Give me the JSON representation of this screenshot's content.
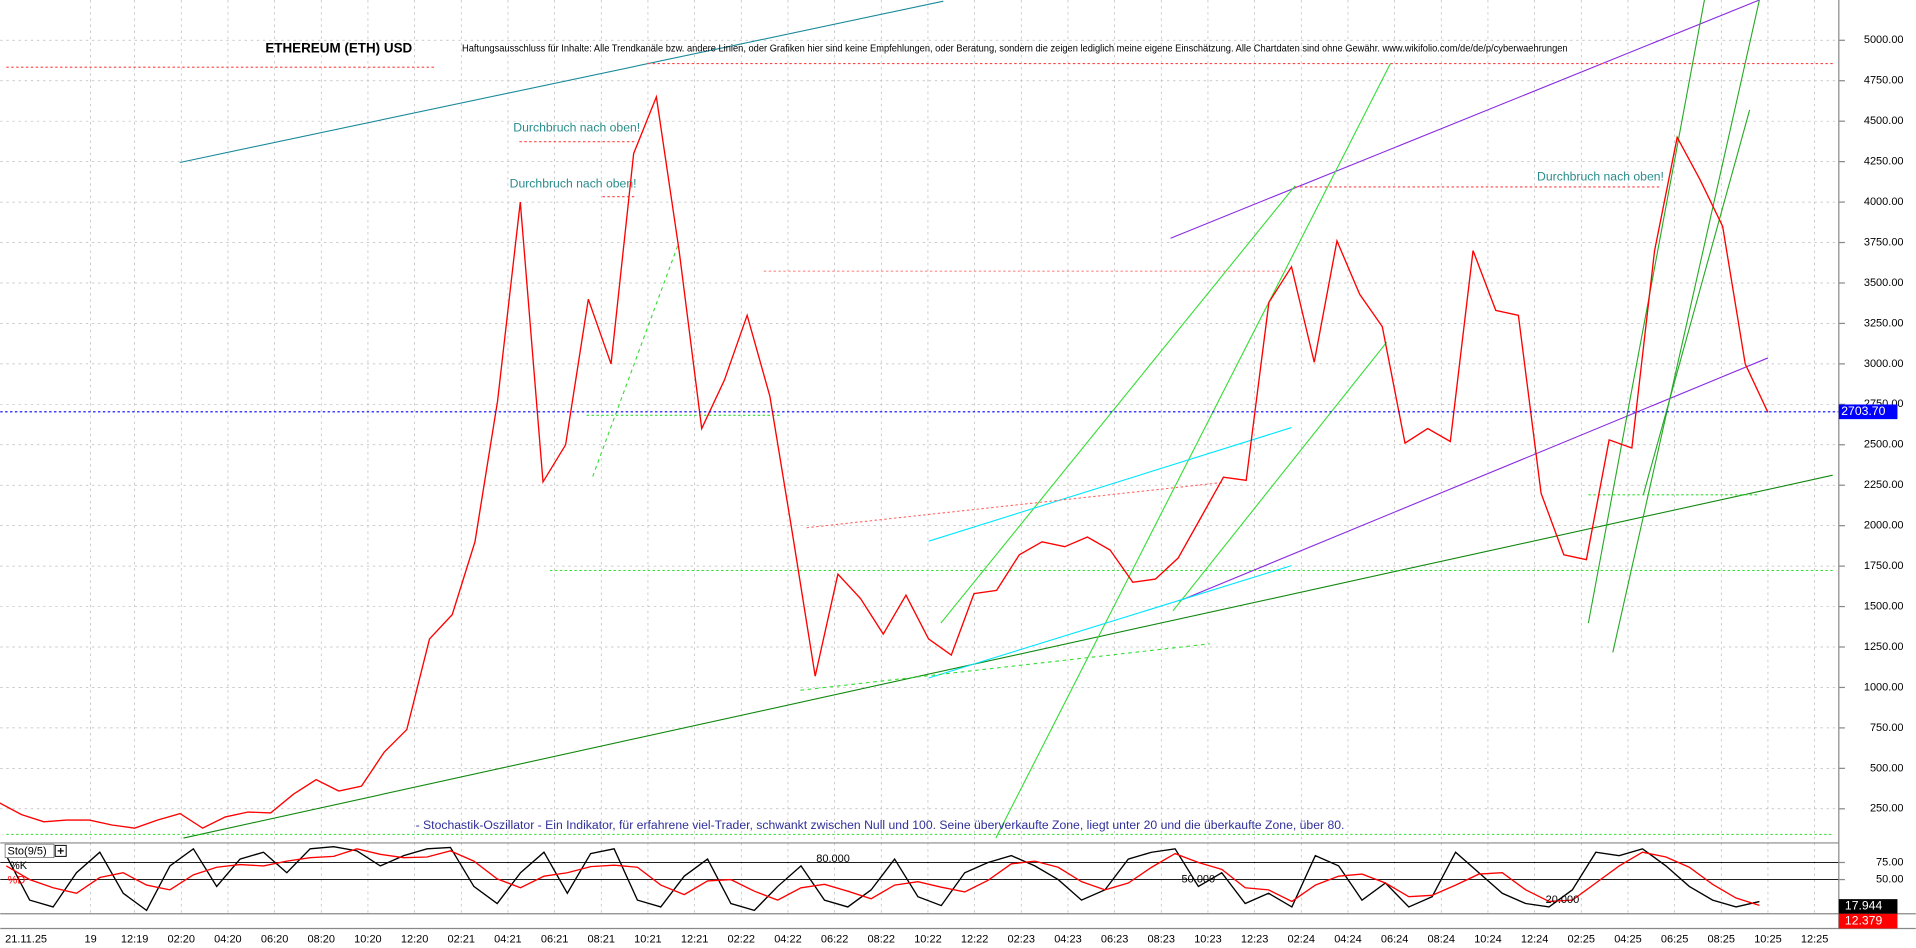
{
  "chart_data": [
    {
      "type": "line",
      "title": "ETHEREUM (ETH) USD",
      "disclaimer": "Haftungsausschluss für Inhalte: Alle Trendkanäle bzw. andere Linien, oder Grafiken hier sind keine Empfehlungen, oder Beratung, sondern die zeigen lediglich meine eigene Einschätzung. Alle Chartdaten sind ohne Gewähr.  www.wikifolio.com/de/de/p/cyberwaehrungen",
      "annotations": [
        "Durchbruch nach oben!",
        "Durchbruch nach oben!",
        "Durchbruch nach oben!",
        "- Stochastik-Oszillator - Ein Indikator, für erfahrene viel-Trader, schwankt zwischen Null und 100. Seine überverkaufte Zone, liegt unter 20 und die überkaufte Zone, über 80."
      ],
      "x_labels": [
        "21.11.25",
        "19",
        "12:19",
        "02:20",
        "04:20",
        "06:20",
        "08:20",
        "10:20",
        "12:20",
        "02:21",
        "04:21",
        "06:21",
        "08:21",
        "10:21",
        "12:21",
        "02:22",
        "04:22",
        "06:22",
        "08:22",
        "10:22",
        "12:22",
        "02:23",
        "04:23",
        "06:23",
        "08:23",
        "10:23",
        "12:23",
        "02:24",
        "04:24",
        "06:24",
        "08:24",
        "10:24",
        "12:24",
        "02:25",
        "04:25",
        "06:25",
        "08:25",
        "10:25",
        "12:25"
      ],
      "values": [
        290,
        215,
        170,
        180,
        180,
        150,
        130,
        180,
        220,
        130,
        200,
        230,
        225,
        340,
        430,
        360,
        390,
        600,
        740,
        1300,
        1450,
        1900,
        2770,
        4000,
        2270,
        2500,
        3400,
        3000,
        4300,
        4650,
        3700,
        2600,
        2900,
        3300,
        2800,
        1950,
        1070,
        1700,
        1550,
        1330,
        1570,
        1300,
        1200,
        1580,
        1600,
        1820,
        1900,
        1870,
        1930,
        1850,
        1650,
        1670,
        1800,
        2050,
        2300,
        2280,
        3380,
        3600,
        3010,
        3760,
        3430,
        3230,
        2510,
        2600,
        2520,
        3700,
        3330,
        3300,
        2200,
        1820,
        1790,
        2530,
        2480,
        3700,
        4400,
        4140,
        3850,
        3000,
        2700
      ],
      "color": "#ff0000",
      "last_price": {
        "value": 2703.7,
        "label": "2703.70"
      },
      "last_price_color": "#0000ff",
      "ylim": [
        39,
        5249
      ],
      "yticks": [
        {
          "value": 250,
          "label": "250.00"
        },
        {
          "value": 500,
          "label": "500.00"
        },
        {
          "value": 750,
          "label": "750.00"
        },
        {
          "value": 1000,
          "label": "1000.00"
        },
        {
          "value": 1250,
          "label": "1250.00"
        },
        {
          "value": 1500,
          "label": "1500.00"
        },
        {
          "value": 1750,
          "label": "1750.00"
        },
        {
          "value": 2000,
          "label": "2000.00"
        },
        {
          "value": 2250,
          "label": "2250.00"
        },
        {
          "value": 2500,
          "label": "2500.00"
        },
        {
          "value": 2750,
          "label": "2750.00"
        },
        {
          "value": 3000,
          "label": "3000.00"
        },
        {
          "value": 3250,
          "label": "3250.00"
        },
        {
          "value": 3500,
          "label": "3500.00"
        },
        {
          "value": 3750,
          "label": "3750.00"
        },
        {
          "value": 4000,
          "label": "4000.00"
        },
        {
          "value": 4250,
          "label": "4250.00"
        },
        {
          "value": 4500,
          "label": "4500.00"
        },
        {
          "value": 4750,
          "label": "4750.00"
        },
        {
          "value": 5000,
          "label": "5000.00"
        }
      ],
      "grid": true
    },
    {
      "type": "line",
      "title": "Sto(9/5)",
      "series": [
        {
          "name": "%K",
          "color": "#000000",
          "values": [
            85,
            20,
            10,
            60,
            90,
            30,
            5,
            70,
            95,
            40,
            80,
            90,
            60,
            95,
            98,
            92,
            70,
            85,
            95,
            97,
            40,
            15,
            60,
            90,
            30,
            88,
            95,
            20,
            10,
            55,
            80,
            15,
            5,
            40,
            70,
            20,
            10,
            35,
            80,
            25,
            12,
            60,
            75,
            85,
            70,
            50,
            20,
            35,
            80,
            90,
            95,
            40,
            60,
            15,
            30,
            10,
            85,
            70,
            20,
            45,
            10,
            25,
            90,
            60,
            30,
            15,
            10,
            35,
            90,
            85,
            95,
            70,
            40,
            20,
            10,
            17.944
          ]
        },
        {
          "name": "%D",
          "color": "#ff0000",
          "values": [
            70,
            50,
            38,
            30,
            53,
            60,
            42,
            35,
            57,
            68,
            72,
            70,
            77,
            82,
            84,
            95,
            87,
            82,
            83,
            92,
            77,
            51,
            38,
            55,
            60,
            69,
            71,
            68,
            42,
            28,
            48,
            50,
            33,
            20,
            38,
            43,
            33,
            22,
            42,
            47,
            39,
            32,
            49,
            73,
            77,
            68,
            47,
            35,
            45,
            68,
            88,
            75,
            65,
            38,
            35,
            18,
            42,
            55,
            58,
            45,
            25,
            27,
            42,
            58,
            60,
            35,
            18,
            20,
            45,
            70,
            90,
            83,
            68,
            43,
            23,
            12.379
          ]
        }
      ],
      "levels": [
        {
          "value": 80,
          "label": "80.000"
        },
        {
          "value": 50,
          "label": "50.000"
        },
        {
          "value": 20,
          "label": "20.000"
        }
      ],
      "ylim": [
        0,
        100
      ],
      "yticks": [
        {
          "value": 75,
          "label": "75.00"
        },
        {
          "value": 50,
          "label": "50.00"
        }
      ],
      "grid": true
    }
  ]
}
